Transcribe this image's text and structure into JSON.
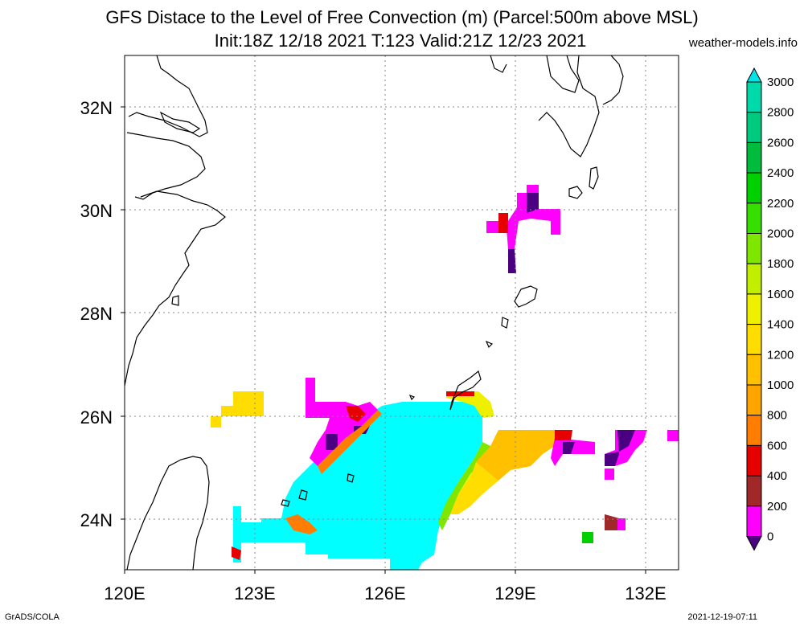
{
  "title": {
    "line1": "GFS Distace to the Level of Free Convection (m) (Parcel:500m above MSL)",
    "line2": "Init:18Z 12/18 2021 T:123 Valid:21Z 12/23 2021"
  },
  "site": "weather-models.info",
  "footer": {
    "left": "GrADS/COLA",
    "right": "2021-12-19-07:11"
  },
  "axes": {
    "lat_labels": [
      "32N",
      "30N",
      "28N",
      "26N",
      "24N"
    ],
    "lon_labels": [
      "120E",
      "123E",
      "126E",
      "129E",
      "132E"
    ]
  },
  "colorbar": {
    "labels": [
      "3000",
      "2800",
      "2600",
      "2400",
      "2200",
      "2000",
      "1800",
      "1600",
      "1400",
      "1200",
      "1000",
      "800",
      "600",
      "400",
      "200",
      "0"
    ],
    "colors": [
      "#00e4e8",
      "#00d9a9",
      "#00c980",
      "#00bc3c",
      "#00d000",
      "#37df00",
      "#7fe600",
      "#c2ef00",
      "#eef000",
      "#ffdd00",
      "#ffc000",
      "#ffa500",
      "#ff7d00",
      "#e60000",
      "#a02828",
      "#ff00ff",
      "#4b0082"
    ]
  },
  "legend_colors": {
    "high": "#00ffff",
    "very_low": "#4b0082"
  }
}
